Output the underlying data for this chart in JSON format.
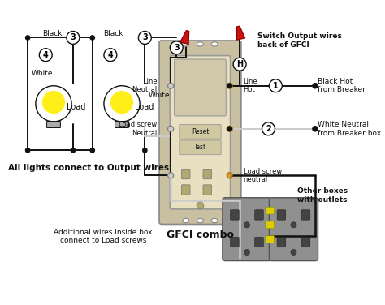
{
  "bg_color": "#ffffff",
  "gfci_body_color": "#e8e0c0",
  "gfci_plate_color": "#c8c0a0",
  "gfci_rocker_color": "#d0c8a8",
  "outlet_bg": "#909090",
  "outlet_slot": "#444444",
  "yellow_tab": "#ddcc00",
  "black_wire": "#111111",
  "white_wire": "#cccccc",
  "red_conn": "#cc1111",
  "dot_color": "#111111",
  "circle_bg": "#ffffff",
  "circle_ec": "#111111",
  "bulb_yellow": "#ffee00",
  "bulb_white": "#ffffff",
  "bulb_base": "#aaaaaa",
  "annotations": {
    "switch_output": "Switch Output wires\nback of GFCI",
    "all_lights": "All lights connect to Output wires",
    "additional": "Additional wires inside box\nconnect to Load screws",
    "gfci_combo": "GFCI combo",
    "other_boxes": "Other boxes\nwith outlets",
    "black_hot": "Black Hot\nfrom Breaker",
    "white_neutral": "White Neutral\nfrom Breaker box",
    "line_neutral": "Line\nNeutral",
    "line_hot": "Line\nHot",
    "load_screw_neutral_left": "Load screw\nNeutral",
    "load_screw_neutral_right": "Load screw\nneutral",
    "black1": "Black",
    "black2": "Black",
    "white1": "White",
    "white2": "White",
    "load1": "Load",
    "load2": "Load",
    "reset": "Reset",
    "test": "Test"
  }
}
